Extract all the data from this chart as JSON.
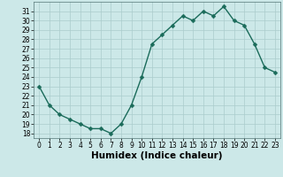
{
  "x": [
    0,
    1,
    2,
    3,
    4,
    5,
    6,
    7,
    8,
    9,
    10,
    11,
    12,
    13,
    14,
    15,
    16,
    17,
    18,
    19,
    20,
    21,
    22,
    23
  ],
  "y": [
    23,
    21,
    20,
    19.5,
    19,
    18.5,
    18.5,
    18,
    19,
    21,
    24,
    27.5,
    28.5,
    29.5,
    30.5,
    30,
    31,
    30.5,
    31.5,
    30,
    29.5,
    27.5,
    25,
    24.5
  ],
  "line_color": "#1a6b5a",
  "marker_color": "#1a6b5a",
  "bg_color": "#cce8e8",
  "grid_color": "#aacccc",
  "xlabel": "Humidex (Indice chaleur)",
  "xlim": [
    -0.5,
    23.5
  ],
  "ylim": [
    17.5,
    32
  ],
  "yticks": [
    18,
    19,
    20,
    21,
    22,
    23,
    24,
    25,
    26,
    27,
    28,
    29,
    30,
    31
  ],
  "xticks": [
    0,
    1,
    2,
    3,
    4,
    5,
    6,
    7,
    8,
    9,
    10,
    11,
    12,
    13,
    14,
    15,
    16,
    17,
    18,
    19,
    20,
    21,
    22,
    23
  ],
  "tick_fontsize": 5.5,
  "xlabel_fontsize": 7.5,
  "marker_size": 2.5,
  "line_width": 1.0
}
